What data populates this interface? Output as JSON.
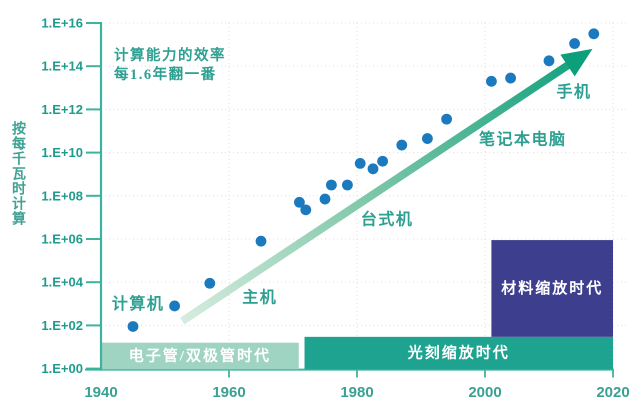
{
  "chart_data": {
    "type": "scatter",
    "title_annotation": {
      "line1": "计算能力的效率",
      "line2": "每1.6年翻一番"
    },
    "ylabel": "按每千瓦时计算",
    "x_axis": {
      "min": 1940,
      "max": 2020,
      "ticks": [
        {
          "label": "1940",
          "year": 1940
        },
        {
          "label": "1960",
          "year": 1960
        },
        {
          "label": "1980",
          "year": 1980
        },
        {
          "label": "2000",
          "year": 2000
        },
        {
          "label": "2020",
          "year": 2020
        }
      ]
    },
    "y_axis": {
      "min_exp": 0,
      "max_exp": 16,
      "ticks": [
        {
          "label": "1.E+00",
          "exp": 0
        },
        {
          "label": "1.E+02",
          "exp": 2
        },
        {
          "label": "1.E+04",
          "exp": 4
        },
        {
          "label": "1.E+06",
          "exp": 6
        },
        {
          "label": "1.E+08",
          "exp": 8
        },
        {
          "label": "1.E+10",
          "exp": 10
        },
        {
          "label": "1.E+12",
          "exp": 12
        },
        {
          "label": "1.E+14",
          "exp": 14
        },
        {
          "label": "1.E+16",
          "exp": 16
        }
      ]
    },
    "points": [
      {
        "year": 1945,
        "exp": 1.95
      },
      {
        "year": 1951.5,
        "exp": 2.9
      },
      {
        "year": 1957,
        "exp": 3.95
      },
      {
        "year": 1965,
        "exp": 5.9
      },
      {
        "year": 1971,
        "exp": 7.7
      },
      {
        "year": 1972,
        "exp": 7.35
      },
      {
        "year": 1975,
        "exp": 7.85
      },
      {
        "year": 1976,
        "exp": 8.5
      },
      {
        "year": 1978.5,
        "exp": 8.5
      },
      {
        "year": 1980.5,
        "exp": 9.5
      },
      {
        "year": 1982.5,
        "exp": 9.25
      },
      {
        "year": 1984,
        "exp": 9.6
      },
      {
        "year": 1987,
        "exp": 10.35
      },
      {
        "year": 1991,
        "exp": 10.65
      },
      {
        "year": 1994,
        "exp": 11.55
      },
      {
        "year": 2001,
        "exp": 13.3
      },
      {
        "year": 2004,
        "exp": 13.45
      },
      {
        "year": 2010,
        "exp": 14.25
      },
      {
        "year": 2014,
        "exp": 15.05
      },
      {
        "year": 2017,
        "exp": 15.5
      }
    ],
    "trend_arrow": {
      "start_year": 1952.7,
      "start_exp": 2.2,
      "end_year": 2016.8,
      "end_exp": 14.8
    },
    "device_labels": [
      {
        "text": "计算机",
        "year": 1945.8,
        "exp": 3.0
      },
      {
        "text": "主机",
        "year": 1964.8,
        "exp": 3.3
      },
      {
        "text": "台式机",
        "year": 1984.7,
        "exp": 6.9
      },
      {
        "text": "笔记本电脑",
        "year": 2005.9,
        "exp": 10.6
      },
      {
        "text": "手机",
        "year": 2013.9,
        "exp": 12.8
      }
    ],
    "eras": [
      {
        "label": "电子管/双极管时代",
        "start_year": 1940,
        "end_year": 1970.9,
        "top_exp": 1.2,
        "bottom_exp": 0,
        "color": "#9fd3c2",
        "text_color": "#ffffff"
      },
      {
        "label": "光刻缩放时代",
        "start_year": 1971.8,
        "end_year": 2020,
        "top_exp": 1.47,
        "bottom_exp": 0,
        "color": "#1ea390",
        "text_color": "#ffffff"
      },
      {
        "label": "材料缩放时代",
        "start_year": 2001,
        "end_year": 2020,
        "top_exp": 5.95,
        "bottom_exp": 1.47,
        "color": "#3d3f8e",
        "text_color": "#ffffff"
      }
    ],
    "colors": {
      "point": "#1b79bd",
      "axis_line": "#3db39c",
      "tick_text": "#1f9c8d",
      "x_tick_text": "#3aa092",
      "grid": "#cfe7de",
      "label_text": "#2ea092",
      "arrow_start": "#d6ecdf",
      "arrow_mid": "#7fc7a9",
      "arrow_end": "#0d9f7c"
    },
    "legend": "none",
    "grid": "faint-dotted"
  }
}
